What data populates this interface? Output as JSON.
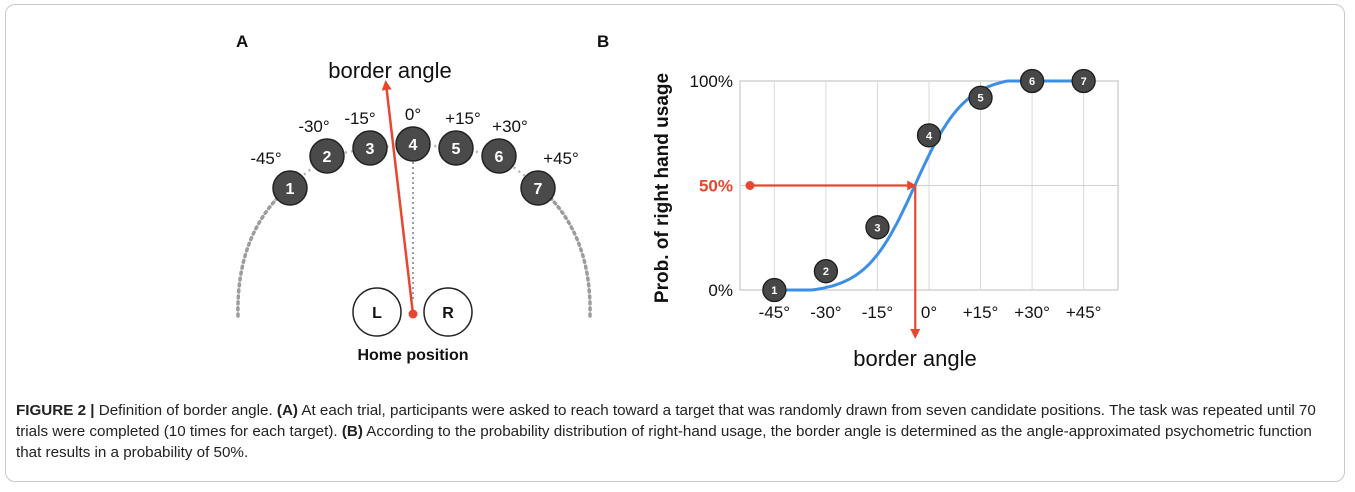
{
  "panel_a": {
    "label": "A",
    "arrow_label": "border angle",
    "home_label": "Home position",
    "hand_left": "L",
    "hand_right": "R",
    "targets": [
      {
        "num": "1",
        "angle": "-45°"
      },
      {
        "num": "2",
        "angle": "-30°"
      },
      {
        "num": "3",
        "angle": "-15°"
      },
      {
        "num": "4",
        "angle": "0°"
      },
      {
        "num": "5",
        "angle": "+15°"
      },
      {
        "num": "6",
        "angle": "+30°"
      },
      {
        "num": "7",
        "angle": "+45°"
      }
    ]
  },
  "panel_b": {
    "label": "B",
    "marker_50": "50%",
    "arrow_color": "#e8472f",
    "curve_color": "#3d8ee6"
  },
  "chart_data": {
    "type": "line",
    "ylabel": "Prob. of right hand usage",
    "xlabel": "border angle",
    "x_ticks": [
      "-45°",
      "-30°",
      "-15°",
      "0°",
      "+15°",
      "+30°",
      "+45°"
    ],
    "y_ticks": [
      "0%",
      "50%",
      "100%"
    ],
    "ylim": [
      0,
      100
    ],
    "x": [
      -45,
      -30,
      -15,
      0,
      15,
      30,
      45
    ],
    "points": [
      {
        "num": "1",
        "x": -45,
        "y": 0
      },
      {
        "num": "2",
        "x": -30,
        "y": 9
      },
      {
        "num": "3",
        "x": -15,
        "y": 30
      },
      {
        "num": "4",
        "x": 0,
        "y": 74
      },
      {
        "num": "5",
        "x": 15,
        "y": 92
      },
      {
        "num": "6",
        "x": 30,
        "y": 100
      },
      {
        "num": "7",
        "x": 45,
        "y": 100
      }
    ],
    "border_angle_x": -4,
    "border_prob_y": 50,
    "grid": true
  },
  "caption": {
    "fig_label": "FIGURE 2 |",
    "title": " Definition of border angle. ",
    "a_tag": "(A)",
    "a_text": " At each trial, participants were asked to reach toward a target that was randomly drawn from seven candidate positions. The task was repeated until 70 trials were completed (10 times for each target). ",
    "b_tag": "(B)",
    "b_text": " According to the probability distribution of right-hand usage, the border angle is determined as the angle-approximated psychometric function that results in a probability of 50%."
  }
}
